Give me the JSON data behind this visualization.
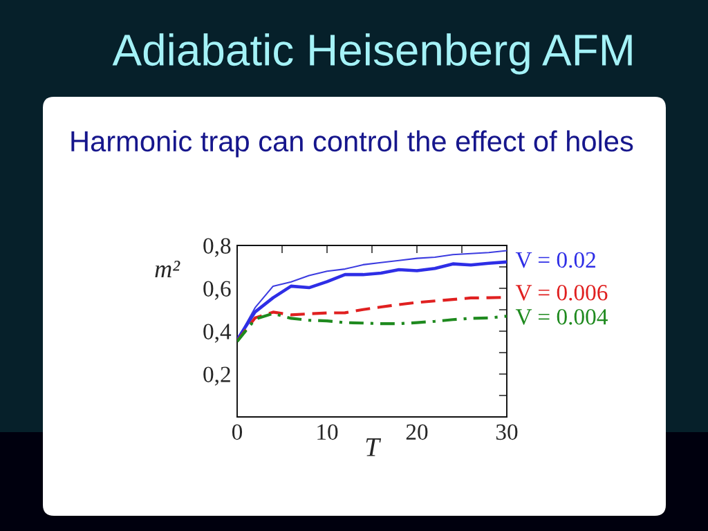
{
  "chart_data": {
    "type": "line",
    "title": "Adiabatic Heisenberg AFM",
    "subtitle": "Harmonic trap can control the effect of holes",
    "xlabel": "T",
    "ylabel": "m²",
    "x": [
      0,
      2,
      4,
      6,
      8,
      10,
      12,
      14,
      16,
      18,
      20,
      22,
      24,
      26,
      28,
      30
    ],
    "series": [
      {
        "color": "#3c3ce0",
        "values": [
          0.36,
          0.51,
          0.61,
          0.63,
          0.66,
          0.68,
          0.69,
          0.71,
          0.72,
          0.73,
          0.74,
          0.745,
          0.757,
          0.762,
          0.767,
          0.776
        ]
      },
      {
        "name": "V = 0.02",
        "color": "#2e2ee6",
        "values": [
          0.36,
          0.49,
          0.556,
          0.61,
          0.603,
          0.631,
          0.664,
          0.664,
          0.671,
          0.687,
          0.682,
          0.693,
          0.714,
          0.709,
          0.717,
          0.723
        ]
      },
      {
        "name": "V = 0.006",
        "color": "#e02020",
        "line_style": "dashed",
        "values": [
          0.354,
          0.462,
          0.489,
          0.476,
          0.481,
          0.485,
          0.486,
          0.501,
          0.513,
          0.524,
          0.534,
          0.541,
          0.548,
          0.555,
          0.556,
          0.558
        ]
      },
      {
        "name": "V = 0.004",
        "color": "#1f8a1f",
        "line_style": "dashdot",
        "values": [
          0.352,
          0.456,
          0.483,
          0.46,
          0.451,
          0.448,
          0.44,
          0.438,
          0.435,
          0.435,
          0.44,
          0.446,
          0.454,
          0.46,
          0.462,
          0.47
        ]
      }
    ],
    "xlim": [
      0,
      30
    ],
    "xticks": [
      0,
      {
        "value": 5,
        "label": null
      },
      10,
      {
        "value": 15,
        "label": null
      },
      20,
      {
        "value": 25,
        "label": null
      },
      30
    ],
    "ylim": [
      0,
      0.8
    ],
    "yticks": [
      {
        "value": 0.1,
        "label": null
      },
      {
        "value": 0.2,
        "label": "0,2"
      },
      {
        "value": 0.3,
        "label": null
      },
      {
        "value": 0.4,
        "label": "0,4"
      },
      {
        "value": 0.5,
        "label": null
      },
      {
        "value": 0.6,
        "label": "0,6"
      },
      {
        "value": 0.7,
        "label": null
      },
      {
        "value": 0.8,
        "label": "0,8"
      }
    ],
    "grid": false,
    "legend": false
  }
}
